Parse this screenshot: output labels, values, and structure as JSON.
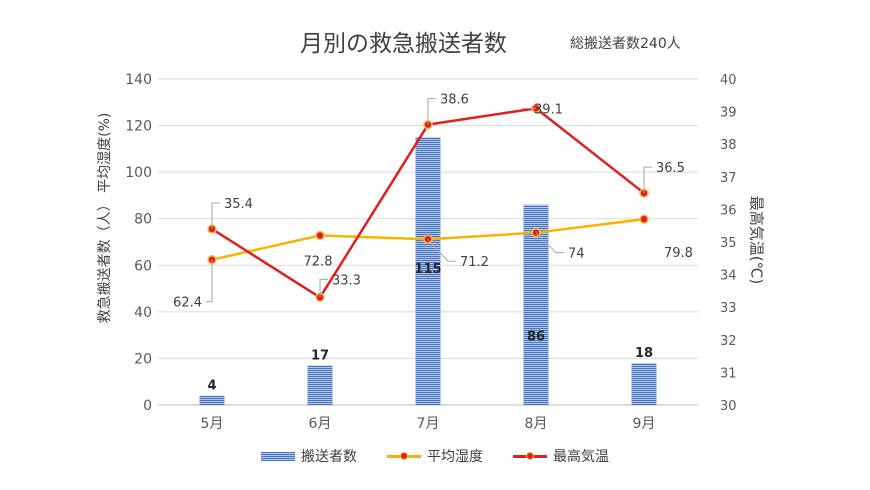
{
  "title": "月別の救急搬送者数",
  "subtitle": "総搬送者数240人",
  "chart_data": {
    "type": "bar",
    "categories": [
      "5月",
      "6月",
      "7月",
      "8月",
      "9月"
    ],
    "series": [
      {
        "name": "搬送者数",
        "kind": "bar",
        "axis": "left",
        "values": [
          4,
          17,
          115,
          86,
          18
        ],
        "color": "#4472c4"
      },
      {
        "name": "平均湿度",
        "kind": "line",
        "axis": "left",
        "values": [
          62.4,
          72.8,
          71.2,
          74,
          79.8
        ],
        "color": "#f4b400"
      },
      {
        "name": "最高気温",
        "kind": "line",
        "axis": "right",
        "values": [
          35.4,
          33.3,
          38.6,
          39.1,
          36.5
        ],
        "color": "#e02020"
      }
    ],
    "left_axis": {
      "label": "救急搬送者数（人） 平均湿度(%)",
      "ylim": [
        0,
        140
      ],
      "ticks": [
        0,
        20,
        40,
        60,
        80,
        100,
        120,
        140
      ]
    },
    "right_axis": {
      "label": "最高気温(℃)",
      "ylim": [
        30,
        40
      ],
      "ticks": [
        30,
        31,
        32,
        33,
        34,
        35,
        36,
        37,
        38,
        39,
        40
      ]
    },
    "grid": true,
    "legend_position": "bottom"
  }
}
